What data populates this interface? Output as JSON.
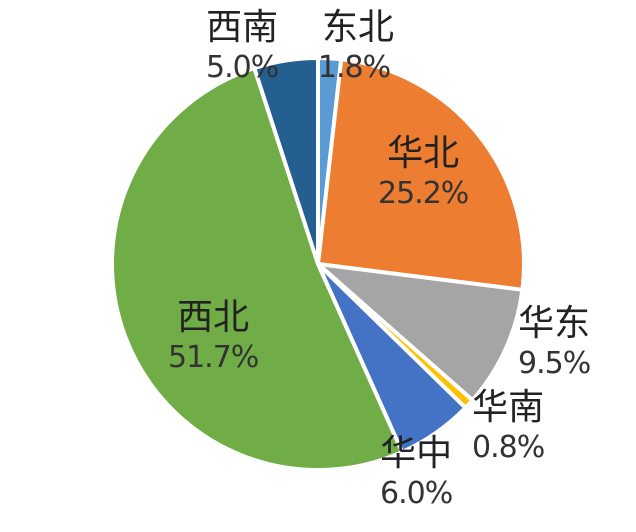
{
  "chart_data": {
    "type": "pie",
    "title": "",
    "start_angle_deg": 0,
    "direction": "clockwise",
    "slices": [
      {
        "label": "东北",
        "value": 1.8,
        "display": "1.8%",
        "color": "#5B9BD5"
      },
      {
        "label": "华北",
        "value": 25.2,
        "display": "25.2%",
        "color": "#ED7D31"
      },
      {
        "label": "华东",
        "value": 9.5,
        "display": "9.5%",
        "color": "#A5A5A5"
      },
      {
        "label": "华南",
        "value": 0.8,
        "display": "0.8%",
        "color": "#FFC000"
      },
      {
        "label": "华中",
        "value": 6.0,
        "display": "6.0%",
        "color": "#4472C4"
      },
      {
        "label": "西北",
        "value": 51.7,
        "display": "51.7%",
        "color": "#70AD47"
      },
      {
        "label": "西南",
        "value": 5.0,
        "display": "5.0%",
        "color": "#255E91"
      }
    ]
  },
  "labels": {
    "dongbei": {
      "name": "东北",
      "pct": "1.8%"
    },
    "huabei": {
      "name": "华北",
      "pct": "25.2%"
    },
    "huadong": {
      "name": "华东",
      "pct": "9.5%"
    },
    "huanan": {
      "name": "华南",
      "pct": "0.8%"
    },
    "huazhong": {
      "name": "华中",
      "pct": "6.0%"
    },
    "xibei": {
      "name": "西北",
      "pct": "51.7%"
    },
    "xinan": {
      "name": "西南",
      "pct": "5.0%"
    }
  }
}
